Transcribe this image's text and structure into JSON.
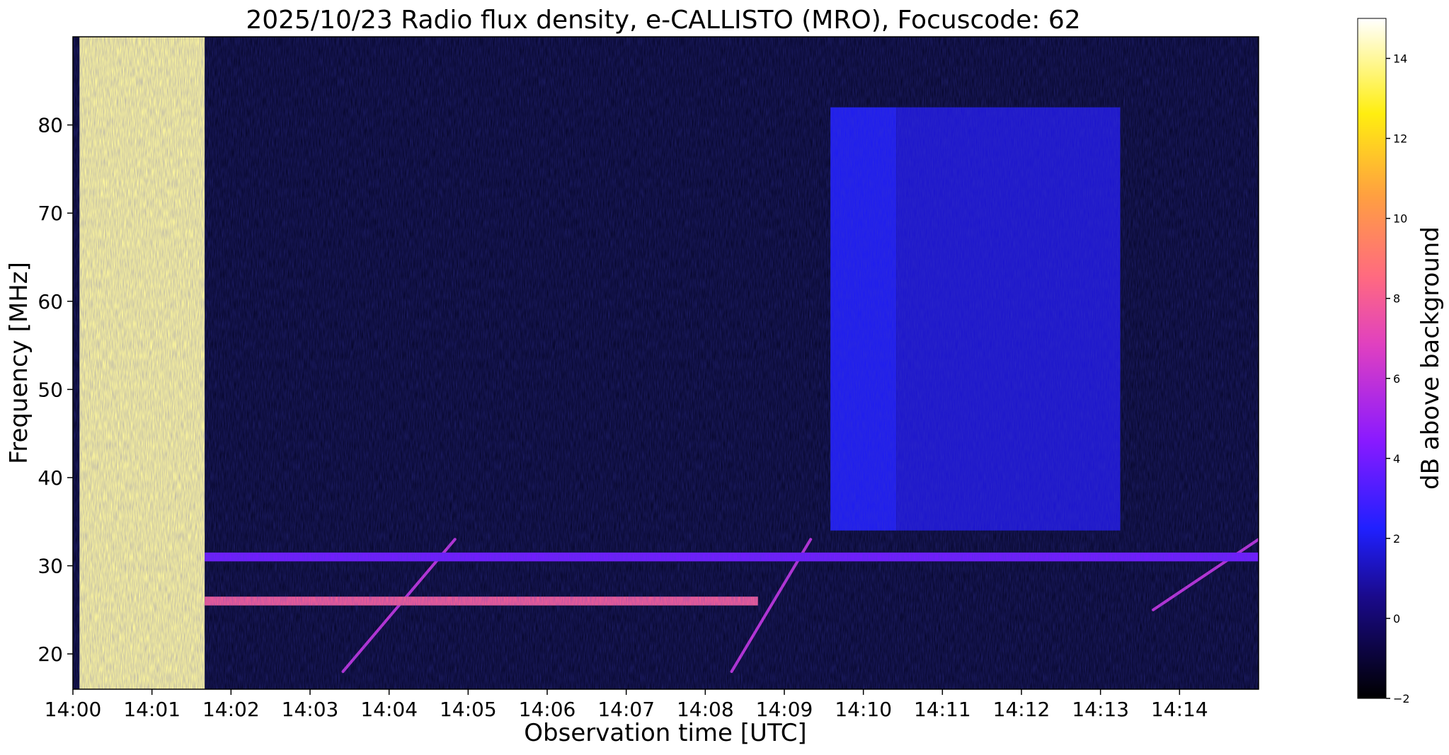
{
  "chart_data": {
    "type": "heatmap",
    "title": "2025/10/23  Radio flux density, e-CALLISTO (MRO), Focuscode: 62",
    "xlabel": "Observation time [UTC]",
    "ylabel": "Frequency [MHz]",
    "x_ticks": [
      "14:00",
      "14:01",
      "14:02",
      "14:03",
      "14:04",
      "14:05",
      "14:06",
      "14:07",
      "14:08",
      "14:09",
      "14:10",
      "14:11",
      "14:12",
      "14:13",
      "14:14"
    ],
    "x_range": [
      "14:00:00",
      "14:15:00"
    ],
    "y_ticks": [
      20,
      30,
      40,
      50,
      60,
      70,
      80
    ],
    "y_range": [
      16,
      90
    ],
    "colorbar": {
      "label": "dB above background",
      "ticks": [
        -2,
        0,
        2,
        4,
        6,
        8,
        10,
        12,
        14
      ],
      "range": [
        -2,
        15
      ],
      "colormap": "gnuplot2"
    },
    "features": [
      {
        "name": "initial broadband burst",
        "time_start": "14:00:05",
        "time_end": "14:01:40",
        "freq_range": [
          16,
          90
        ],
        "level_db": 14
      },
      {
        "name": "enhanced band",
        "time_start": "14:09:35",
        "time_end": "14:10:25",
        "freq_range": [
          34,
          82
        ],
        "level_db": 2
      },
      {
        "name": "enhanced band",
        "time_start": "14:10:25",
        "time_end": "14:13:15",
        "freq_range": [
          34,
          82
        ],
        "level_db": 1.5
      },
      {
        "name": "drifting burst",
        "time_start": "14:03:25",
        "time_end": "14:04:50",
        "freq_range": [
          18,
          33
        ],
        "level_db": 6
      },
      {
        "name": "drifting burst",
        "time_start": "14:08:20",
        "time_end": "14:09:20",
        "freq_range": [
          18,
          33
        ],
        "level_db": 6
      },
      {
        "name": "drifting burst",
        "time_start": "14:13:40",
        "time_end": "14:15:00",
        "freq_range": [
          25,
          33
        ],
        "level_db": 6
      },
      {
        "name": "narrowband emission",
        "time_start": "14:01:40",
        "time_end": "14:08:40",
        "freq_range": [
          25.5,
          26.5
        ],
        "level_db": 8
      },
      {
        "name": "narrowband emission",
        "time_start": "14:01:40",
        "time_end": "14:15:00",
        "freq_range": [
          30.5,
          31.5
        ],
        "level_db": 4
      }
    ]
  }
}
